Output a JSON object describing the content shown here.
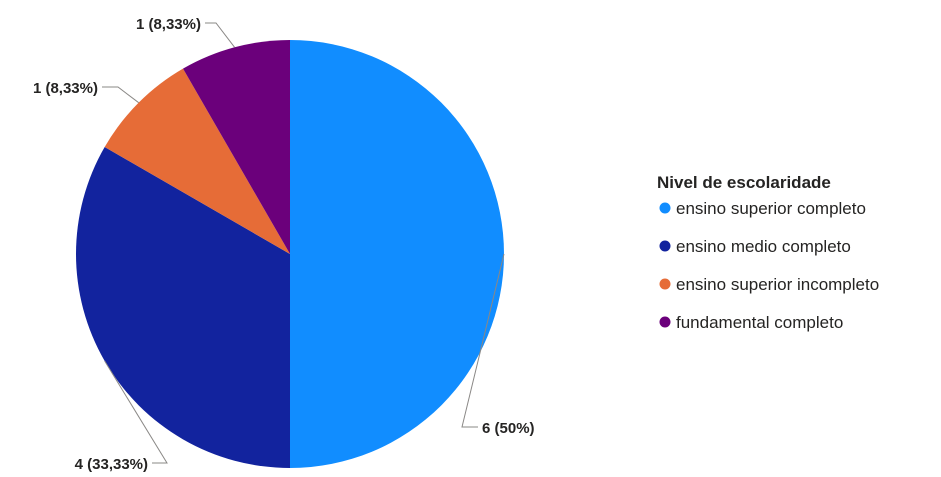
{
  "chart_data": {
    "type": "pie",
    "legend": {
      "title": "Nivel de escolaridade",
      "placement": "right"
    },
    "slices": [
      {
        "name": "ensino superior completo",
        "value": 6,
        "label": "6 (50%)",
        "color": "#118DFF"
      },
      {
        "name": "ensino medio completo",
        "value": 4,
        "label": "4 (33,33%)",
        "color": "#12239E"
      },
      {
        "name": "ensino superior incompleto",
        "value": 1,
        "label": "1 (8,33%)",
        "color": "#E66C37"
      },
      {
        "name": "fundamental completo",
        "value": 1,
        "label": "1 (8,33%)",
        "color": "#6B007B"
      }
    ]
  }
}
